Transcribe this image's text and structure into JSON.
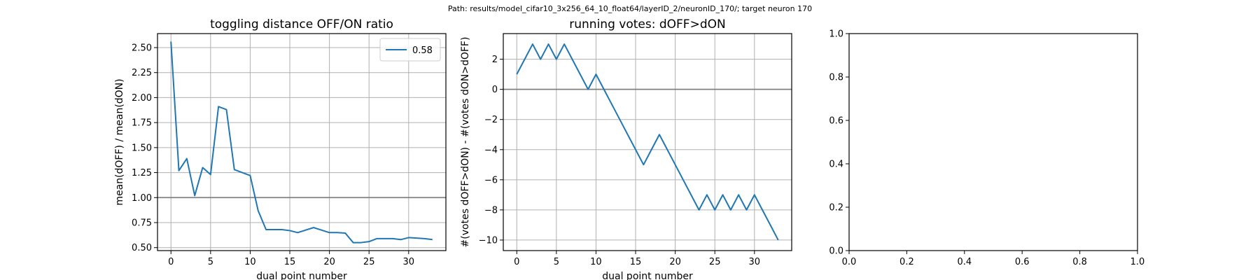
{
  "figure": {
    "suptitle": "Path: results/model_cifar10_3x256_64_10_float64/layerID_2/neuronID_170/; target neuron 170"
  },
  "chart_data": [
    {
      "type": "line",
      "title": "toggling distance OFF/ON ratio",
      "xlabel": "dual point number",
      "ylabel": "mean(dOFF) / mean(dON)",
      "xlim": [
        -1.7,
        34.7
      ],
      "ylim": [
        0.47,
        2.64
      ],
      "xticks": [
        0,
        5,
        10,
        15,
        20,
        25,
        30
      ],
      "yticks": [
        0.5,
        0.75,
        1.0,
        1.25,
        1.5,
        1.75,
        2.0,
        2.25,
        2.5
      ],
      "ytick_labels": [
        "0.50",
        "0.75",
        "1.00",
        "1.25",
        "1.50",
        "1.75",
        "2.00",
        "2.25",
        "2.50"
      ],
      "grid": true,
      "reference_line": 1.0,
      "legend": {
        "position": "upper right",
        "entries": [
          "0.58"
        ]
      },
      "series": [
        {
          "name": "0.58",
          "color": "#1f77b4",
          "x": [
            0,
            1,
            2,
            3,
            4,
            5,
            6,
            7,
            8,
            9,
            10,
            11,
            12,
            13,
            14,
            15,
            16,
            17,
            18,
            19,
            20,
            21,
            22,
            23,
            24,
            25,
            26,
            27,
            28,
            29,
            30,
            31,
            32,
            33
          ],
          "y": [
            2.56,
            1.27,
            1.39,
            1.02,
            1.3,
            1.23,
            1.91,
            1.88,
            1.28,
            1.25,
            1.22,
            0.87,
            0.68,
            0.68,
            0.68,
            0.67,
            0.65,
            0.675,
            0.7,
            0.675,
            0.65,
            0.65,
            0.645,
            0.55,
            0.55,
            0.56,
            0.59,
            0.59,
            0.59,
            0.58,
            0.6,
            0.595,
            0.59,
            0.58
          ]
        }
      ]
    },
    {
      "type": "line",
      "title": "running votes: dOFF>dON",
      "xlabel": "dual point number",
      "ylabel": "#(votes dOFF>dON) - #(votes dON>dOFF)",
      "xlim": [
        -1.7,
        34.7
      ],
      "ylim": [
        -10.7,
        3.7
      ],
      "xticks": [
        0,
        5,
        10,
        15,
        20,
        25,
        30
      ],
      "yticks": [
        -10,
        -8,
        -6,
        -4,
        -2,
        0,
        2
      ],
      "ytick_labels": [
        "−10",
        "−8",
        "−6",
        "−4",
        "−2",
        "0",
        "2"
      ],
      "grid": true,
      "reference_line": 0,
      "series": [
        {
          "color": "#1f77b4",
          "x": [
            0,
            1,
            2,
            3,
            4,
            5,
            6,
            7,
            8,
            9,
            10,
            11,
            12,
            13,
            14,
            15,
            16,
            17,
            18,
            19,
            20,
            21,
            22,
            23,
            24,
            25,
            26,
            27,
            28,
            29,
            30,
            31,
            32,
            33
          ],
          "y": [
            1,
            2,
            3,
            2,
            3,
            2,
            3,
            2,
            1,
            0,
            1,
            0,
            -1,
            -2,
            -3,
            -4,
            -5,
            -4,
            -3,
            -4,
            -5,
            -6,
            -7,
            -8,
            -7,
            -8,
            -7,
            -8,
            -7,
            -8,
            -7,
            -8,
            -9,
            -10
          ]
        }
      ]
    },
    {
      "type": "line",
      "title": "",
      "xlabel": "",
      "ylabel": "",
      "xlim": [
        0,
        1
      ],
      "ylim": [
        0,
        1
      ],
      "xticks": [
        0,
        0.2,
        0.4,
        0.6,
        0.8,
        1.0
      ],
      "yticks": [
        0,
        0.2,
        0.4,
        0.6,
        0.8,
        1.0
      ],
      "xtick_labels": [
        "0.0",
        "0.2",
        "0.4",
        "0.6",
        "0.8",
        "1.0"
      ],
      "ytick_labels": [
        "0.0",
        "0.2",
        "0.4",
        "0.6",
        "0.8",
        "1.0"
      ],
      "grid": false,
      "series": []
    }
  ]
}
